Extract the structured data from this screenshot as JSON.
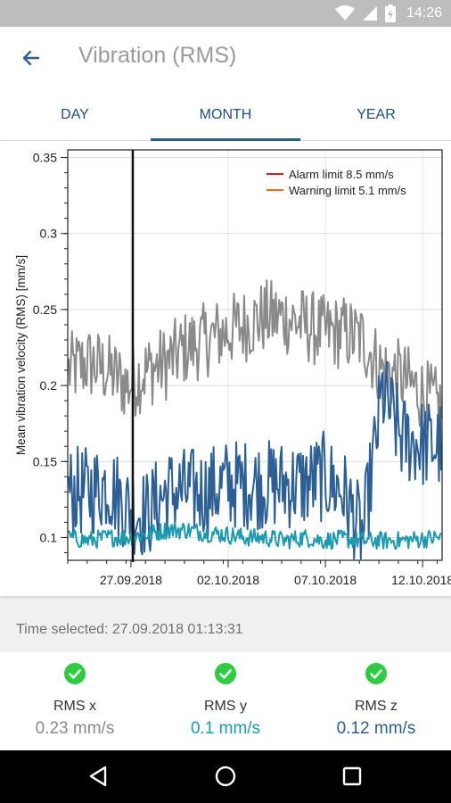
{
  "status_bar": {
    "time": "14:26",
    "icons": [
      "wifi-icon",
      "signal-icon",
      "battery-icon"
    ]
  },
  "app_bar": {
    "title": "Vibration (RMS)",
    "back_icon": "arrow-back-icon"
  },
  "tabs": [
    {
      "label": "DAY",
      "selected": false
    },
    {
      "label": "MONTH",
      "selected": true
    },
    {
      "label": "YEAR",
      "selected": false
    }
  ],
  "colors": {
    "accent": "#2b5f8e",
    "alarm": "#cc1f1f",
    "warning": "#f26a1b",
    "rms_x": "#8a8a8a",
    "rms_y": "#1a9bb0",
    "rms_z": "#2b5f96",
    "ok": "#2ecc40"
  },
  "chart_data": {
    "type": "line",
    "ylabel": "Mean vibration velocity (RMS) [mm/s]",
    "ylim": [
      0.085,
      0.355
    ],
    "yticks": [
      "0.1",
      "0.15",
      "0.2",
      "0.25",
      "0.3",
      "0.35"
    ],
    "x_tick_labels": [
      "27.09.2018",
      "02.10.2018",
      "07.10.2018",
      "12.10.2018"
    ],
    "x_range_days": [
      "23.09.2018 18:00",
      "13.10.2018 00:00"
    ],
    "selected_marker": "27.09.2018 01:13:31",
    "legend": [
      {
        "label": "Alarm limit  8.5 mm/s",
        "color": "#cc1f1f"
      },
      {
        "label": "Warning limit 5.1 mm/s",
        "color": "#f26a1b"
      }
    ],
    "series": [
      {
        "color": "#8a8a8a",
        "approx_mean_by_day": [
          0.21,
          0.215,
          0.21,
          0.2,
          0.21,
          0.215,
          0.225,
          0.23,
          0.235,
          0.24,
          0.245,
          0.245,
          0.24,
          0.235,
          0.235,
          0.23,
          0.21,
          0.205,
          0.195,
          0.185
        ]
      },
      {
        "color": "#2b5f96",
        "approx_mean_by_day": [
          0.13,
          0.13,
          0.135,
          0.12,
          0.115,
          0.13,
          0.13,
          0.13,
          0.135,
          0.135,
          0.135,
          0.135,
          0.135,
          0.14,
          0.13,
          0.1,
          0.195,
          0.165,
          0.162,
          0.16
        ]
      },
      {
        "color": "#1a9bb0",
        "approx_mean_by_day": [
          0.1,
          0.098,
          0.1,
          0.1,
          0.102,
          0.105,
          0.105,
          0.103,
          0.102,
          0.1,
          0.1,
          0.098,
          0.1,
          0.098,
          0.099,
          0.098,
          0.098,
          0.098,
          0.099,
          0.1
        ]
      }
    ]
  },
  "time_selected": "Time selected: 27.09.2018 01:13:31",
  "metrics": [
    {
      "label": "RMS x",
      "value": "0.23 mm/s",
      "color": "#8a8a8a",
      "status_icon": "check-circle-icon"
    },
    {
      "label": "RMS y",
      "value": "0.1 mm/s",
      "color": "#1a9bb0",
      "status_icon": "check-circle-icon"
    },
    {
      "label": "RMS z",
      "value": "0.12 mm/s",
      "color": "#2b5f96",
      "status_icon": "check-circle-icon"
    }
  ],
  "nav_bar": {
    "icons": [
      "back-triangle-icon",
      "home-circle-icon",
      "recents-square-icon"
    ]
  }
}
